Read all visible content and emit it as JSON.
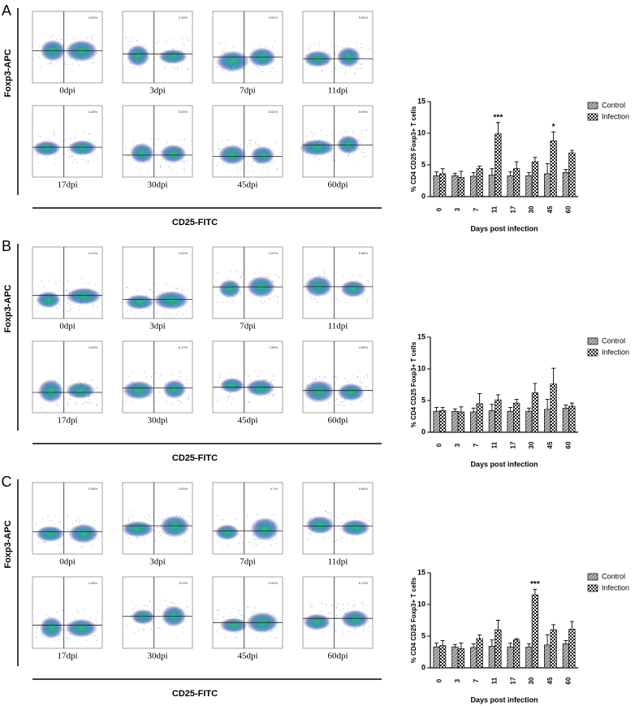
{
  "flow_panels": [
    {
      "label": "A",
      "y_label": "Foxp3-APC",
      "x_label": "CD25-FITC",
      "plots": [
        {
          "label": "0dpi",
          "percent": "3.63%"
        },
        {
          "label": "3dpi",
          "percent": "3.15%"
        },
        {
          "label": "7dpi",
          "percent": "4.51%"
        },
        {
          "label": "11dpi",
          "percent": "9.84%"
        },
        {
          "label": "17dpi",
          "percent": "4.38%"
        },
        {
          "label": "30dpi",
          "percent": "5.54%"
        },
        {
          "label": "45dpi",
          "percent": "8.81%"
        },
        {
          "label": "60dpi",
          "percent": "5.95%"
        }
      ]
    },
    {
      "label": "B",
      "y_label": "Foxp3-APC",
      "x_label": "CD25-FITC",
      "plots": [
        {
          "label": "0dpi",
          "percent": "3.41%"
        },
        {
          "label": "3dpi",
          "percent": "3.24%"
        },
        {
          "label": "7dpi",
          "percent": "4.51%"
        },
        {
          "label": "11dpi",
          "percent": "5.66%"
        },
        {
          "label": "17dpi",
          "percent": "4.83%"
        },
        {
          "label": "30dpi",
          "percent": "6.17%"
        },
        {
          "label": "45dpi",
          "percent": "7.59%"
        },
        {
          "label": "60dpi",
          "percent": "4.89%"
        }
      ]
    },
    {
      "label": "C",
      "y_label": "Foxp3-APC",
      "x_label": "CD25-FITC",
      "plots": [
        {
          "label": "0dpi",
          "percent": "3.48%"
        },
        {
          "label": "3dpi",
          "percent": "3.63%"
        },
        {
          "label": "7dpi",
          "percent": "4.7%"
        },
        {
          "label": "11dpi",
          "percent": "5.89%"
        },
        {
          "label": "17dpi",
          "percent": "4.48%"
        },
        {
          "label": "30dpi",
          "percent": "11.5%"
        },
        {
          "label": "45dpi",
          "percent": "5.64%"
        },
        {
          "label": "60dpi",
          "percent": "6.12%"
        }
      ]
    }
  ],
  "chart_data": [
    {
      "type": "bar",
      "y_label": "% CD4 CD25 Foxp3+ T cells",
      "x_label": "Days post infection",
      "categories": [
        "0",
        "3",
        "7",
        "11",
        "17",
        "30",
        "45",
        "60"
      ],
      "ylim": [
        0,
        15
      ],
      "yticks": [
        0,
        5,
        10,
        15
      ],
      "series": [
        {
          "name": "Control",
          "pattern": "hatch",
          "values": [
            3.3,
            3.3,
            3.2,
            3.4,
            3.3,
            3.3,
            3.6,
            3.8
          ],
          "errors": [
            0.6,
            0.4,
            0.6,
            1.0,
            0.6,
            0.5,
            1.6,
            0.5
          ]
        },
        {
          "name": "Infection",
          "pattern": "checker",
          "values": [
            3.6,
            3.0,
            4.4,
            9.9,
            4.4,
            5.5,
            8.8,
            6.9
          ],
          "errors": [
            0.8,
            1.0,
            0.4,
            1.8,
            1.1,
            0.7,
            1.4,
            0.4
          ]
        }
      ],
      "annotations": [
        {
          "text": "***",
          "at": "11"
        },
        {
          "text": "*",
          "at": "45"
        }
      ]
    },
    {
      "type": "bar",
      "y_label": "% CD4 CD25 Foxp3+ T cells",
      "x_label": "Days post infection",
      "categories": [
        "0",
        "3",
        "7",
        "11",
        "17",
        "30",
        "45",
        "60"
      ],
      "ylim": [
        0,
        15
      ],
      "yticks": [
        0,
        5,
        10,
        15
      ],
      "series": [
        {
          "name": "Control",
          "pattern": "hatch",
          "values": [
            3.3,
            3.3,
            3.2,
            3.4,
            3.3,
            3.3,
            3.6,
            3.8
          ],
          "errors": [
            0.6,
            0.4,
            0.6,
            1.0,
            0.6,
            0.5,
            1.6,
            0.5
          ]
        },
        {
          "name": "Infection",
          "pattern": "checker",
          "values": [
            3.4,
            3.2,
            4.5,
            5.1,
            4.6,
            6.2,
            7.6,
            4.1
          ],
          "errors": [
            0.5,
            0.8,
            1.6,
            0.8,
            0.6,
            1.5,
            2.5,
            0.5
          ]
        }
      ],
      "annotations": []
    },
    {
      "type": "bar",
      "y_label": "% CD4 CD25 Foxp3+ T cells",
      "x_label": "Days post infection",
      "categories": [
        "0",
        "3",
        "7",
        "11",
        "17",
        "30",
        "45",
        "60"
      ],
      "ylim": [
        0,
        15
      ],
      "yticks": [
        0,
        5,
        10,
        15
      ],
      "series": [
        {
          "name": "Control",
          "pattern": "hatch",
          "values": [
            3.3,
            3.3,
            3.2,
            3.4,
            3.3,
            3.3,
            3.6,
            3.8
          ],
          "errors": [
            0.6,
            0.4,
            0.6,
            1.0,
            0.6,
            0.5,
            1.6,
            0.5
          ]
        },
        {
          "name": "Infection",
          "pattern": "checker",
          "values": [
            3.5,
            3.0,
            4.6,
            6.0,
            4.4,
            11.5,
            6.0,
            6.1
          ],
          "errors": [
            0.8,
            0.9,
            0.6,
            1.5,
            0.2,
            0.9,
            0.8,
            1.2
          ]
        }
      ],
      "annotations": [
        {
          "text": "***",
          "at": "30"
        }
      ]
    }
  ]
}
